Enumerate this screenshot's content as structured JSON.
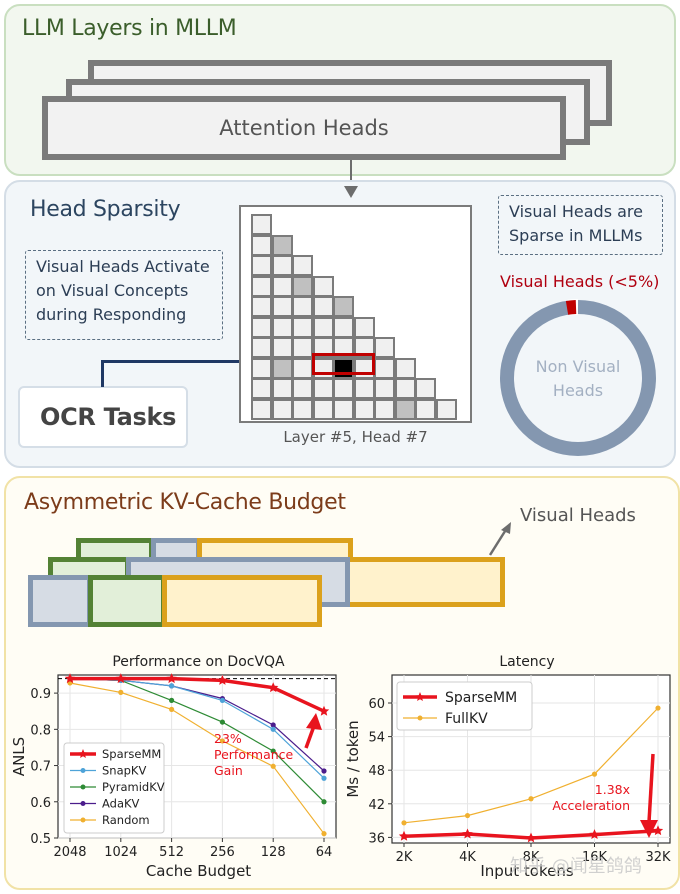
{
  "panel1": {
    "title": "LLM Layers in MLLM",
    "layer_label": "Attention Heads"
  },
  "panel2": {
    "title": "Head Sparsity",
    "activate_note": [
      "Visual Heads Activate",
      "on Visual Concepts",
      "during Responding"
    ],
    "sparse_note": [
      "Visual Heads are",
      "Sparse in MLLMs"
    ],
    "ocr_task": "OCR Tasks",
    "grid_caption": "Layer #5, Head #7",
    "grid": {
      "rows": 10,
      "gray_cells": [
        [
          1,
          1
        ],
        [
          3,
          2
        ],
        [
          4,
          4
        ],
        [
          7,
          1
        ],
        [
          9,
          7
        ]
      ],
      "black_cell": [
        7,
        4
      ],
      "highlight_range": [
        7,
        3,
        5
      ]
    },
    "donut": {
      "visual_label": "Visual Heads (<5%)",
      "center_label": [
        "Non Visual",
        "Heads"
      ],
      "visual_color": "#c00000",
      "non_visual_color": "#8497b0"
    }
  },
  "panel3": {
    "title": "Asymmetric KV-Cache Budget",
    "visual_heads_label": "Visual Heads",
    "colors": {
      "green": "#548235",
      "blue": "#8497b0",
      "orange": "#dba11c"
    }
  },
  "chart_data": [
    {
      "type": "line",
      "title": "Performance on DocVQA",
      "xlabel": "Cache Budget",
      "ylabel": "ANLS",
      "categories": [
        "2048",
        "1024",
        "512",
        "256",
        "128",
        "64"
      ],
      "ylim": [
        0.5,
        0.95
      ],
      "yticks": [
        "0.5",
        "0.6",
        "0.7",
        "0.8",
        "0.9"
      ],
      "reference_line": 0.94,
      "series": [
        {
          "name": "SparseMM",
          "color": "#e8141e",
          "values": [
            0.94,
            0.94,
            0.94,
            0.935,
            0.915,
            0.85
          ]
        },
        {
          "name": "SnapKV",
          "color": "#4ea3d8",
          "values": [
            0.94,
            0.935,
            0.92,
            0.88,
            0.8,
            0.665
          ]
        },
        {
          "name": "PyramidKV",
          "color": "#2e8b35",
          "values": [
            0.94,
            0.935,
            0.88,
            0.82,
            0.74,
            0.6
          ]
        },
        {
          "name": "AdaKV",
          "color": "#4b1d8c",
          "values": [
            0.94,
            0.935,
            0.92,
            0.885,
            0.812,
            0.685
          ]
        },
        {
          "name": "Random",
          "color": "#f0b030",
          "values": [
            0.928,
            0.902,
            0.855,
            0.768,
            0.698,
            0.512
          ]
        }
      ],
      "annotation": [
        "23%",
        "Performance",
        "Gain"
      ]
    },
    {
      "type": "line",
      "title": "Latency",
      "xlabel": "Input tokens",
      "ylabel": "Ms / token",
      "categories": [
        "2K",
        "4K",
        "8K",
        "16K",
        "32K"
      ],
      "ylim": [
        35,
        65
      ],
      "yticks": [
        "36",
        "42",
        "48",
        "54",
        "60"
      ],
      "series": [
        {
          "name": "SparseMM",
          "color": "#e8141e",
          "values": [
            36.2,
            36.6,
            35.9,
            36.5,
            37.2
          ]
        },
        {
          "name": "FullKV",
          "color": "#f0b030",
          "values": [
            38.6,
            39.9,
            42.9,
            47.3,
            59.1
          ]
        }
      ],
      "annotation": [
        "1.38x",
        "Acceleration"
      ]
    }
  ],
  "watermark": "知乎 @闻星鸽鸽"
}
